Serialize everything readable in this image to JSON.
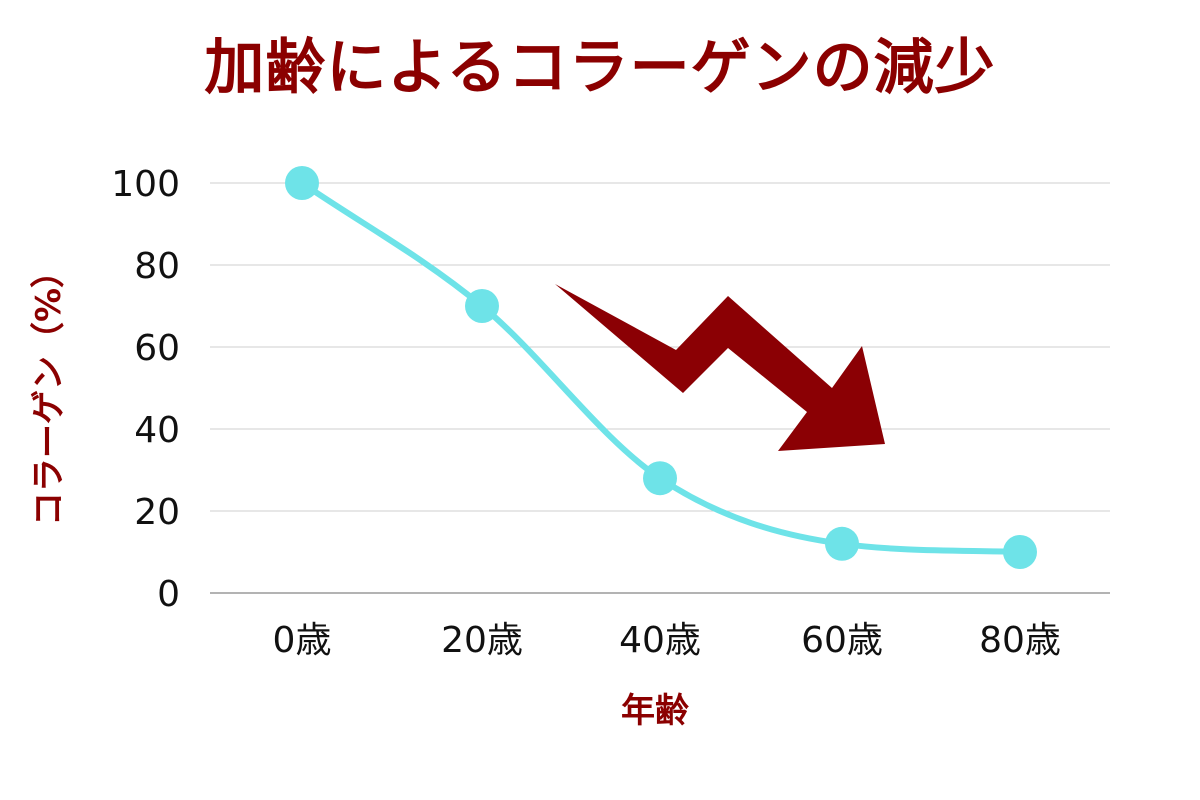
{
  "chart_data": {
    "type": "line",
    "title": "加齢によるコラーゲンの減少",
    "xlabel": "年齢",
    "ylabel": "コラーゲン（%）",
    "categories": [
      "0歳",
      "20歳",
      "40歳",
      "60歳",
      "80歳"
    ],
    "series": [
      {
        "values": [
          100,
          70,
          28,
          12,
          10
        ]
      }
    ],
    "ylim": [
      0,
      100
    ],
    "yticks": [
      "0",
      "20",
      "40",
      "60",
      "80",
      "100"
    ],
    "grid": true,
    "smooth": true,
    "markers": true,
    "legend": "none",
    "annotation": "downward-arrow"
  },
  "colors": {
    "title": "#8b0000",
    "axis_title": "#8b0000",
    "line": "#6ee3e8",
    "arrow": "#8b0004",
    "grid": "#cfcfcf",
    "axis": "#9a9a9a"
  }
}
